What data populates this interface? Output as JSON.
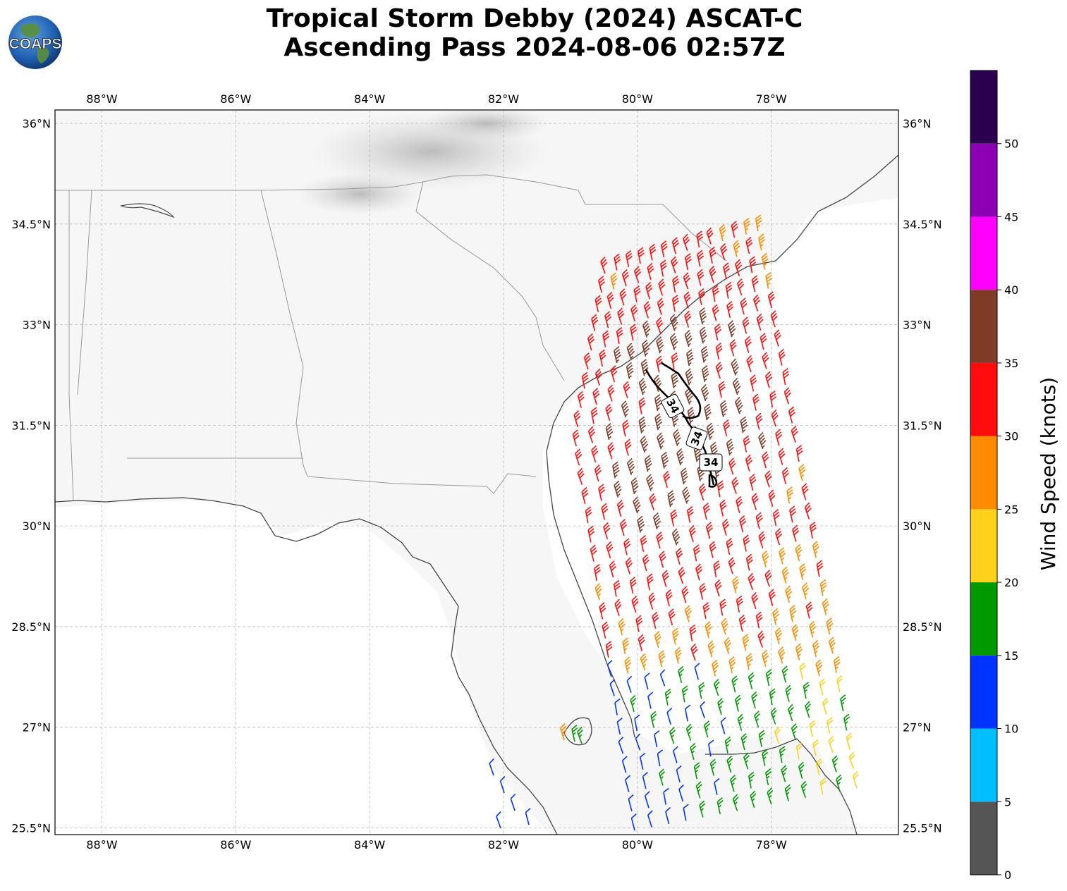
{
  "header": {
    "title_line1": "Tropical Storm Debby (2024) ASCAT-C",
    "title_line2": "Ascending Pass 2024-08-06 02:57Z",
    "logo_text": "COAPS"
  },
  "map": {
    "lon_range": [
      -88.7,
      -76.1
    ],
    "lat_range": [
      25.4,
      36.2
    ],
    "lon_ticks": [
      {
        "value": -88,
        "label": "88°W"
      },
      {
        "value": -86,
        "label": "86°W"
      },
      {
        "value": -84,
        "label": "84°W"
      },
      {
        "value": -82,
        "label": "82°W"
      },
      {
        "value": -80,
        "label": "80°W"
      },
      {
        "value": -78,
        "label": "78°W"
      }
    ],
    "lat_ticks": [
      {
        "value": 36.0,
        "label": "36°N"
      },
      {
        "value": 34.5,
        "label": "34.5°N"
      },
      {
        "value": 33.0,
        "label": "33°N"
      },
      {
        "value": 31.5,
        "label": "31.5°N"
      },
      {
        "value": 30.0,
        "label": "30°N"
      },
      {
        "value": 28.5,
        "label": "28.5°N"
      },
      {
        "value": 27.0,
        "label": "27°N"
      },
      {
        "value": 25.5,
        "label": "25.5°N"
      }
    ],
    "gridlines": true,
    "wind_field": "ASCAT-C wind barbs colored by wind speed",
    "contour": {
      "value": 34,
      "label": "34"
    }
  },
  "colorbar": {
    "title": "Wind Speed (knots)",
    "ticks": [
      "0",
      "5",
      "10",
      "15",
      "20",
      "25",
      "30",
      "35",
      "40",
      "45",
      "50"
    ],
    "bins": [
      {
        "from": 0,
        "to": 5,
        "color": "#555555"
      },
      {
        "from": 5,
        "to": 10,
        "color": "#00bfff"
      },
      {
        "from": 10,
        "to": 15,
        "color": "#0033ff"
      },
      {
        "from": 15,
        "to": 20,
        "color": "#009900"
      },
      {
        "from": 20,
        "to": 25,
        "color": "#ffd11a"
      },
      {
        "from": 25,
        "to": 30,
        "color": "#ff8c00"
      },
      {
        "from": 30,
        "to": 35,
        "color": "#ff0d0d"
      },
      {
        "from": 35,
        "to": 40,
        "color": "#7f3b27"
      },
      {
        "from": 40,
        "to": 45,
        "color": "#ff00ff"
      },
      {
        "from": 45,
        "to": 50,
        "color": "#8c00b3"
      },
      {
        "from": 50,
        "to": 55,
        "color": "#2a004f"
      }
    ]
  }
}
